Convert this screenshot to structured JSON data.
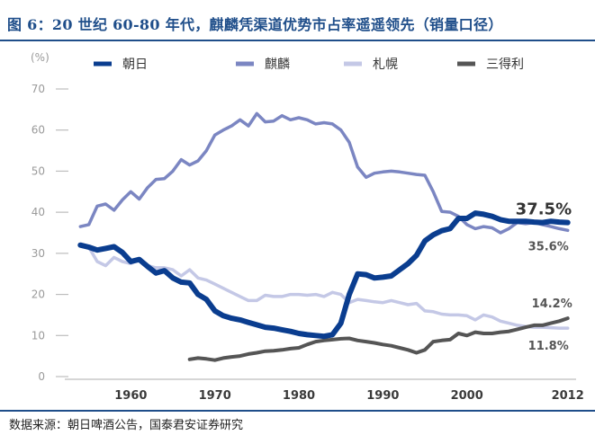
{
  "title": "图 6：20 世纪 60-80 年代，麒麟凭渠道优势市占率遥遥领先（销量口径）",
  "source": "数据来源：朝日啤酒公告，国泰君安证券研究",
  "chart_data": {
    "type": "line",
    "title": "图 6：20 世纪 60-80 年代，麒麟凭渠道优势市占率遥遥领先（销量口径）",
    "ylabel": "(%)",
    "xlabel": "",
    "ylim": [
      0,
      70
    ],
    "xlim": [
      1953,
      2013
    ],
    "yticks": [
      0,
      10,
      20,
      30,
      40,
      50,
      60,
      70
    ],
    "xticks": [
      1960,
      1970,
      1980,
      1990,
      2000,
      2012
    ],
    "legend_position": "top",
    "colors": {
      "asahi": "#0a3d8f",
      "kirin": "#7b86c2",
      "sapporo": "#c4c8e6",
      "suntory": "#555555",
      "axis": "#bdbdbd"
    },
    "series": [
      {
        "key": "asahi",
        "name": "朝日",
        "end_label": "37.5%",
        "x": [
          1954,
          1955,
          1956,
          1957,
          1958,
          1959,
          1960,
          1961,
          1962,
          1963,
          1964,
          1965,
          1966,
          1967,
          1968,
          1969,
          1970,
          1971,
          1972,
          1973,
          1974,
          1975,
          1976,
          1977,
          1978,
          1979,
          1980,
          1981,
          1982,
          1983,
          1984,
          1985,
          1986,
          1987,
          1988,
          1989,
          1990,
          1991,
          1992,
          1993,
          1994,
          1995,
          1996,
          1997,
          1998,
          1999,
          2000,
          2001,
          2002,
          2003,
          2004,
          2005,
          2006,
          2007,
          2008,
          2009,
          2010,
          2011,
          2012
        ],
        "values": [
          32.0,
          31.5,
          30.8,
          31.2,
          31.6,
          30.2,
          28.0,
          28.5,
          26.8,
          25.2,
          25.8,
          24.0,
          23.0,
          22.8,
          20.0,
          18.8,
          16.0,
          14.8,
          14.2,
          13.8,
          13.2,
          12.6,
          12.0,
          11.8,
          11.4,
          11.0,
          10.5,
          10.2,
          10.0,
          9.8,
          10.2,
          13.0,
          20.0,
          25.0,
          24.8,
          24.0,
          24.2,
          24.5,
          26.0,
          27.5,
          29.5,
          33.0,
          34.5,
          35.5,
          36.0,
          38.5,
          38.5,
          39.8,
          39.5,
          39.0,
          38.2,
          37.8,
          37.8,
          37.8,
          37.6,
          37.5,
          37.8,
          37.6,
          37.5
        ]
      },
      {
        "key": "kirin",
        "name": "麒麟",
        "end_label": "35.6%",
        "x": [
          1954,
          1955,
          1956,
          1957,
          1958,
          1959,
          1960,
          1961,
          1962,
          1963,
          1964,
          1965,
          1966,
          1967,
          1968,
          1969,
          1970,
          1971,
          1972,
          1973,
          1974,
          1975,
          1976,
          1977,
          1978,
          1979,
          1980,
          1981,
          1982,
          1983,
          1984,
          1985,
          1986,
          1987,
          1988,
          1989,
          1990,
          1991,
          1992,
          1993,
          1994,
          1995,
          1996,
          1997,
          1998,
          1999,
          2000,
          2001,
          2002,
          2003,
          2004,
          2005,
          2006,
          2007,
          2008,
          2009,
          2010,
          2011,
          2012
        ],
        "values": [
          36.5,
          37.0,
          41.5,
          42.0,
          40.5,
          43.0,
          45.0,
          43.2,
          46.0,
          48.0,
          48.2,
          50.0,
          52.8,
          51.5,
          52.5,
          55.0,
          58.8,
          60.0,
          61.0,
          62.5,
          61.0,
          64.0,
          62.0,
          62.2,
          63.5,
          62.5,
          63.0,
          62.5,
          61.5,
          61.8,
          61.5,
          60.0,
          57.0,
          51.0,
          48.5,
          49.5,
          49.8,
          50.0,
          49.8,
          49.5,
          49.2,
          49.0,
          45.0,
          40.2,
          40.0,
          39.0,
          37.0,
          36.0,
          36.5,
          36.2,
          35.0,
          36.0,
          37.5,
          37.2,
          37.5,
          37.0,
          36.5,
          36.0,
          35.6
        ]
      },
      {
        "key": "sapporo",
        "name": "札幌",
        "end_label": "11.8%",
        "x": [
          1954,
          1955,
          1956,
          1957,
          1958,
          1959,
          1960,
          1961,
          1962,
          1963,
          1964,
          1965,
          1966,
          1967,
          1968,
          1969,
          1970,
          1971,
          1972,
          1973,
          1974,
          1975,
          1976,
          1977,
          1978,
          1979,
          1980,
          1981,
          1982,
          1983,
          1984,
          1985,
          1986,
          1987,
          1988,
          1989,
          1990,
          1991,
          1992,
          1993,
          1994,
          1995,
          1996,
          1997,
          1998,
          1999,
          2000,
          2001,
          2002,
          2003,
          2004,
          2005,
          2006,
          2007,
          2008,
          2009,
          2010,
          2011,
          2012
        ],
        "values": [
          32.0,
          31.5,
          28.0,
          27.0,
          29.0,
          28.0,
          27.5,
          28.5,
          27.0,
          26.5,
          26.5,
          26.0,
          24.5,
          26.0,
          24.0,
          23.5,
          22.5,
          21.5,
          20.5,
          19.5,
          18.5,
          18.5,
          19.8,
          19.5,
          19.5,
          20.0,
          20.0,
          19.8,
          20.0,
          19.5,
          20.5,
          20.0,
          18.0,
          18.8,
          18.5,
          18.2,
          18.0,
          18.5,
          18.0,
          17.5,
          17.8,
          16.0,
          15.8,
          15.2,
          15.0,
          15.0,
          14.8,
          13.8,
          15.0,
          14.5,
          13.5,
          13.0,
          12.5,
          12.2,
          12.0,
          12.0,
          11.9,
          11.8,
          11.8
        ]
      },
      {
        "key": "suntory",
        "name": "三得利",
        "end_label": "14.2%",
        "x": [
          1967,
          1968,
          1969,
          1970,
          1971,
          1972,
          1973,
          1974,
          1975,
          1976,
          1977,
          1978,
          1979,
          1980,
          1981,
          1982,
          1983,
          1984,
          1985,
          1986,
          1987,
          1988,
          1989,
          1990,
          1991,
          1992,
          1993,
          1994,
          1995,
          1996,
          1997,
          1998,
          1999,
          2000,
          2001,
          2002,
          2003,
          2004,
          2005,
          2006,
          2007,
          2008,
          2009,
          2010,
          2011,
          2012
        ],
        "values": [
          4.2,
          4.5,
          4.3,
          4.0,
          4.5,
          4.8,
          5.0,
          5.5,
          5.8,
          6.2,
          6.3,
          6.5,
          6.8,
          7.0,
          7.8,
          8.5,
          8.8,
          9.0,
          9.2,
          9.3,
          8.8,
          8.5,
          8.2,
          7.8,
          7.5,
          7.0,
          6.5,
          5.8,
          6.5,
          8.5,
          8.8,
          9.0,
          10.5,
          10.0,
          10.8,
          10.5,
          10.5,
          10.8,
          11.0,
          11.5,
          12.0,
          12.5,
          12.5,
          13.0,
          13.5,
          14.2
        ]
      }
    ]
  }
}
